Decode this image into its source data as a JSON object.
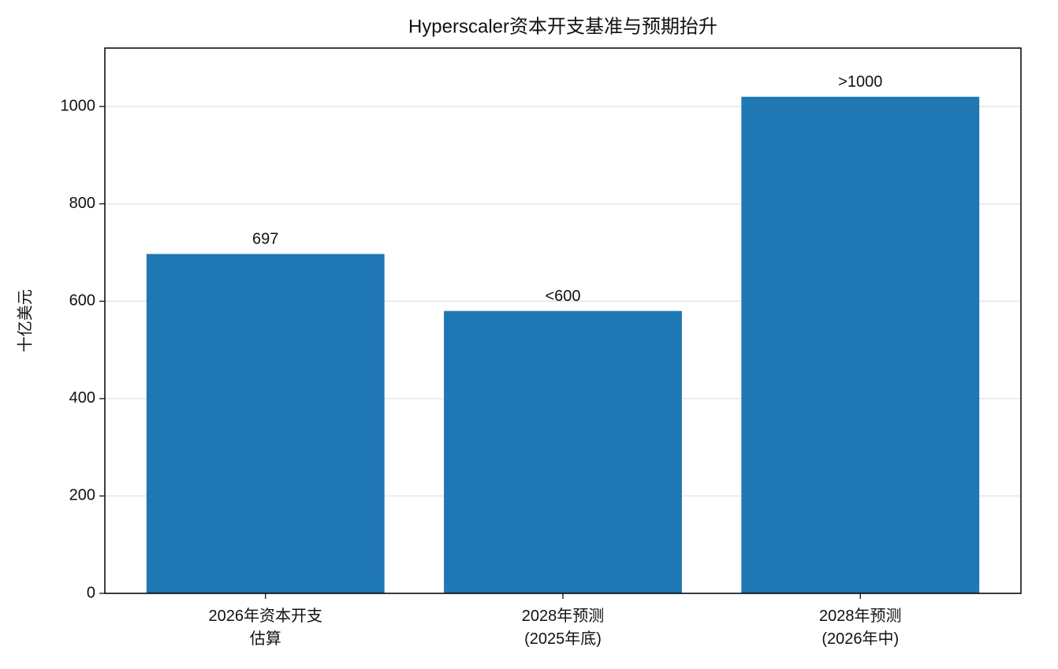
{
  "chart_data": {
    "type": "bar",
    "title": "Hyperscaler资本开支基准与预期抬升",
    "categories": [
      "2026年资本开支\n估算",
      "2028年预测\n(2025年底)",
      "2028年预测\n(2026年中)"
    ],
    "values": [
      697,
      580,
      1020
    ],
    "value_labels": [
      "697",
      "<600",
      ">1000"
    ],
    "color": "#1f77b4",
    "ylabel": "十亿美元",
    "ylim": [
      0,
      1120
    ],
    "yticks": [
      0,
      200,
      400,
      600,
      800,
      1000
    ],
    "grid": true
  }
}
